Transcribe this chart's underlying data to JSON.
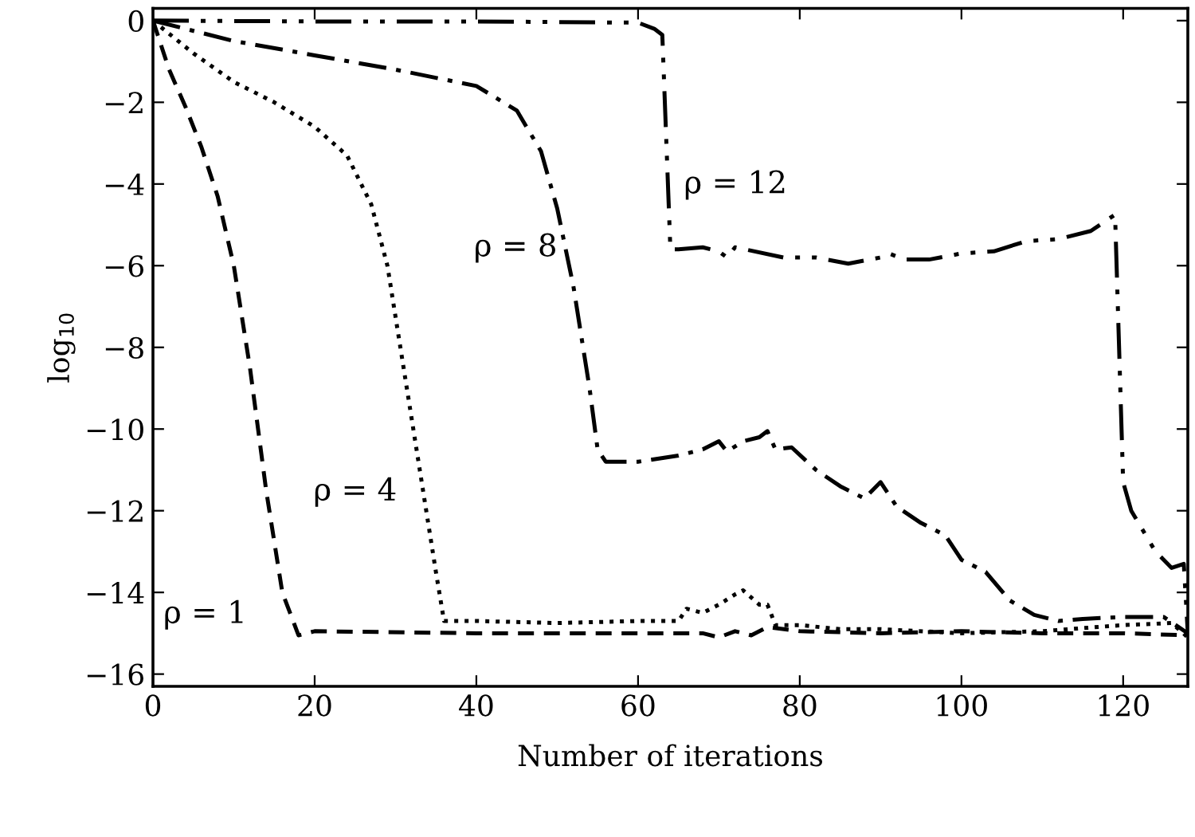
{
  "chart_data": {
    "type": "line",
    "xlabel": "Number of iterations",
    "ylabel": "log$_{10}$",
    "xlim": [
      0,
      128
    ],
    "ylim": [
      -16.3,
      0.3
    ],
    "xticks": [
      0,
      20,
      40,
      60,
      80,
      100,
      120
    ],
    "yticks": [
      {
        "value": 0,
        "label": "0"
      },
      {
        "value": -2,
        "label": "−2"
      },
      {
        "value": -4,
        "label": "−4"
      },
      {
        "value": -6,
        "label": "−6"
      },
      {
        "value": -8,
        "label": "−8"
      },
      {
        "value": -10,
        "label": "−10"
      },
      {
        "value": -12,
        "label": "−12"
      },
      {
        "value": -14,
        "label": "−14"
      },
      {
        "value": -16,
        "label": "−16"
      }
    ],
    "grid": false,
    "marker": "none",
    "series": [
      {
        "name": "ρ = 1",
        "color": "#000000",
        "line_style": "dashed",
        "x": [
          0,
          2,
          4,
          6,
          8,
          10,
          12,
          14,
          16,
          18,
          20,
          40,
          60,
          68,
          70,
          72,
          74,
          76,
          80,
          90,
          100,
          110,
          120,
          128
        ],
        "values": [
          0,
          -1.2,
          -2.1,
          -3.1,
          -4.3,
          -6.0,
          -8.5,
          -11.5,
          -14.0,
          -15.05,
          -14.95,
          -15,
          -15,
          -15,
          -15.1,
          -14.95,
          -15.05,
          -14.85,
          -14.95,
          -15.0,
          -14.95,
          -15.0,
          -15.0,
          -15.05
        ]
      },
      {
        "name": "ρ = 4",
        "color": "#000000",
        "line_style": "dotted",
        "x": [
          0,
          5,
          10,
          15,
          20,
          24,
          27,
          29,
          31,
          33,
          35,
          36,
          40,
          50,
          60,
          65,
          66,
          68,
          70,
          72,
          73,
          75,
          76,
          77,
          80,
          85,
          90,
          100,
          110,
          120,
          126,
          128
        ],
        "values": [
          0,
          -0.8,
          -1.5,
          -2.0,
          -2.6,
          -3.3,
          -4.5,
          -6,
          -8.5,
          -11,
          -13.5,
          -14.7,
          -14.7,
          -14.75,
          -14.7,
          -14.7,
          -14.4,
          -14.5,
          -14.3,
          -14.05,
          -13.95,
          -14.3,
          -14.3,
          -14.8,
          -14.8,
          -14.9,
          -14.9,
          -15,
          -14.95,
          -14.8,
          -14.75,
          -15.1
        ]
      },
      {
        "name": "ρ = 8",
        "color": "#000000",
        "line_style": "dashdot",
        "x": [
          0,
          10,
          20,
          30,
          40,
          45,
          48,
          50,
          52,
          54,
          55,
          56,
          60,
          65,
          68,
          70,
          71,
          73,
          75,
          76,
          77,
          79,
          82,
          85,
          88,
          90,
          92,
          95,
          98,
          100,
          103,
          106,
          109,
          112,
          115,
          120,
          125,
          128
        ],
        "values": [
          0,
          -0.5,
          -0.85,
          -1.2,
          -1.6,
          -2.2,
          -3.2,
          -4.6,
          -6.5,
          -9,
          -10.5,
          -10.8,
          -10.8,
          -10.65,
          -10.5,
          -10.3,
          -10.55,
          -10.3,
          -10.2,
          -10.05,
          -10.5,
          -10.45,
          -11.0,
          -11.4,
          -11.7,
          -11.3,
          -11.9,
          -12.3,
          -12.6,
          -13.2,
          -13.5,
          -14.2,
          -14.55,
          -14.7,
          -14.65,
          -14.6,
          -14.6,
          -15.0
        ]
      },
      {
        "name": "ρ = 12",
        "color": "#000000",
        "line_style": "dashdotdot",
        "x": [
          0,
          20,
          40,
          60,
          62,
          63,
          64,
          65,
          68,
          70,
          71,
          72,
          78,
          82,
          86,
          90,
          91,
          93,
          96,
          100,
          104,
          108,
          112,
          116,
          119,
          120,
          121,
          124,
          126,
          127.5,
          128
        ],
        "values": [
          0,
          -0.02,
          -0.02,
          -0.05,
          -0.2,
          -0.35,
          -5.6,
          -5.6,
          -5.55,
          -5.65,
          -5.8,
          -5.55,
          -5.8,
          -5.8,
          -5.95,
          -5.8,
          -5.7,
          -5.85,
          -5.85,
          -5.7,
          -5.65,
          -5.4,
          -5.35,
          -5.15,
          -4.75,
          -11.3,
          -12,
          -13.0,
          -13.4,
          -13.3,
          -15.0
        ]
      }
    ]
  }
}
